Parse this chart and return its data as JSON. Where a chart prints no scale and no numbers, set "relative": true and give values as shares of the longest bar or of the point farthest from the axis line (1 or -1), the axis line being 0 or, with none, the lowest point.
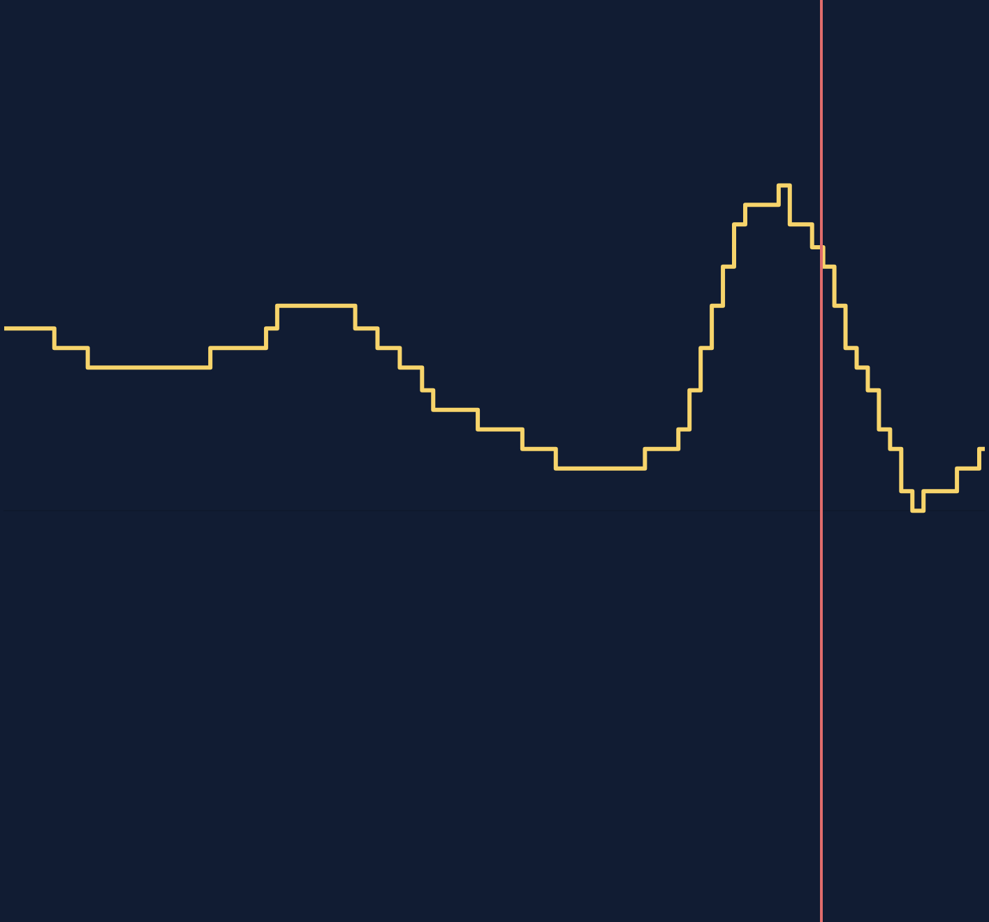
{
  "chart_data": {
    "type": "step",
    "relative": true,
    "legend": false,
    "marker": "none",
    "line_style": "solid",
    "categories": [
      null,
      null,
      null,
      null,
      null,
      null,
      null,
      null,
      null,
      null,
      null,
      null,
      null,
      null,
      null,
      null,
      null,
      null,
      null,
      null,
      null,
      null,
      null,
      null,
      null,
      null,
      null,
      null,
      null,
      null,
      null,
      null,
      null,
      null,
      null,
      null,
      null,
      null,
      null,
      null,
      null,
      null,
      null,
      null,
      null,
      null,
      null,
      null,
      null,
      null,
      null,
      null,
      null,
      null,
      null,
      null,
      null,
      null,
      null,
      null,
      null,
      null,
      null,
      null,
      null,
      null,
      null,
      null,
      null,
      null,
      null,
      null,
      null,
      null,
      null,
      null,
      null,
      null,
      null,
      null,
      null,
      null,
      null,
      null,
      null,
      null,
      null,
      null,
      null
    ],
    "series": [
      {
        "color": "#f7d46b",
        "values": [
          0.56,
          0.56,
          0.56,
          0.56,
          0.56,
          0.5,
          0.5,
          0.5,
          0.44,
          0.44,
          0.44,
          0.44,
          0.44,
          0.44,
          0.44,
          0.44,
          0.44,
          0.44,
          0.44,
          0.5,
          0.5,
          0.5,
          0.5,
          0.5,
          0.56,
          0.63,
          0.63,
          0.63,
          0.63,
          0.63,
          0.63,
          0.63,
          0.56,
          0.56,
          0.5,
          0.5,
          0.44,
          0.44,
          0.37,
          0.31,
          0.31,
          0.31,
          0.31,
          0.25,
          0.25,
          0.25,
          0.25,
          0.19,
          0.19,
          0.19,
          0.13,
          0.13,
          0.13,
          0.13,
          0.13,
          0.13,
          0.13,
          0.13,
          0.19,
          0.19,
          0.19,
          0.25,
          0.37,
          0.5,
          0.63,
          0.75,
          0.88,
          0.94,
          0.94,
          0.94,
          1,
          0.88,
          0.88,
          0.81,
          0.75,
          0.63,
          0.5,
          0.44,
          0.37,
          0.25,
          0.19,
          0.06,
          0,
          0.06,
          0.06,
          0.06,
          0.13,
          0.13,
          0.19
        ]
      }
    ]
  }
}
